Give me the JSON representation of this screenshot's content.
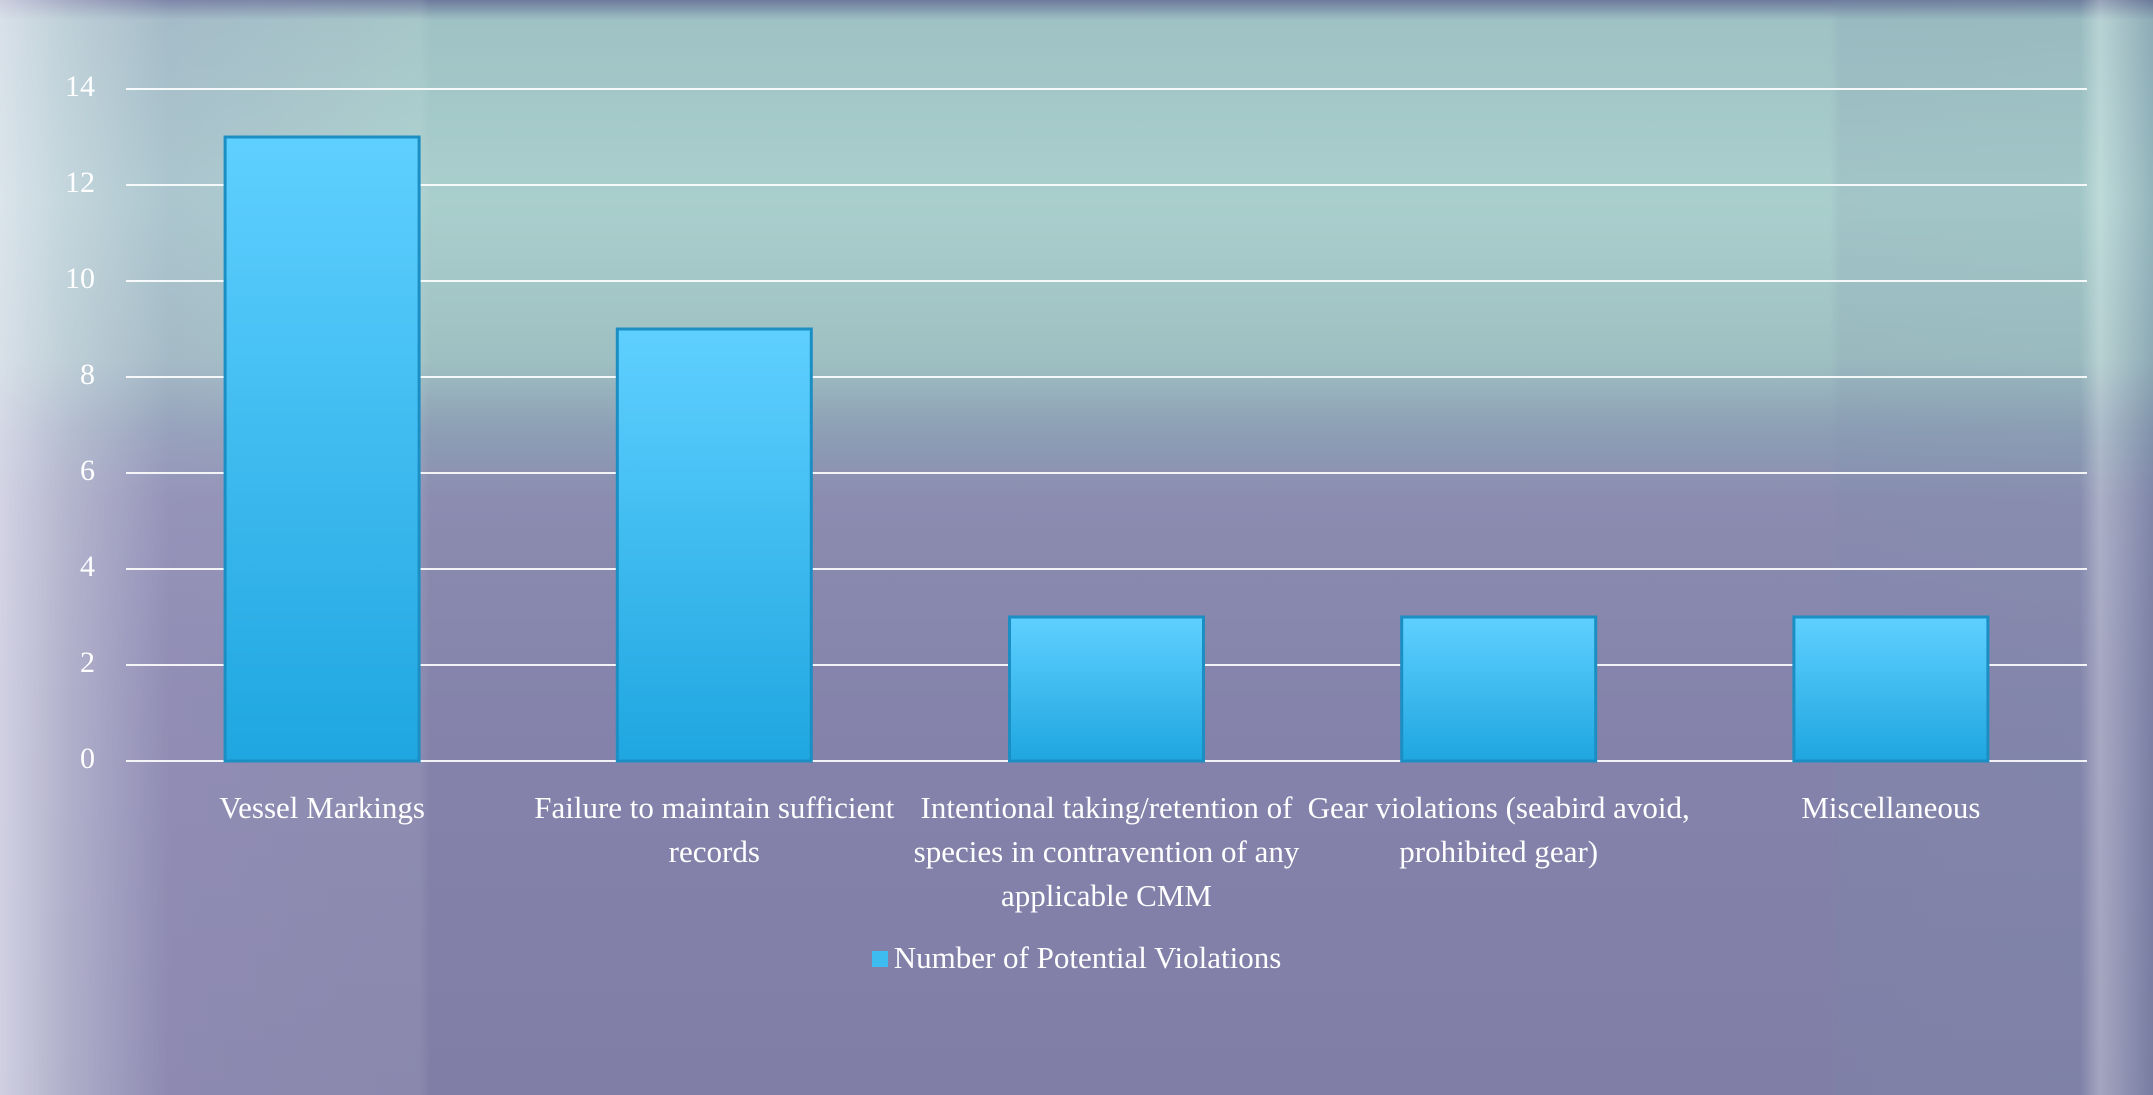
{
  "chart_data": {
    "type": "bar",
    "categories": [
      "Vessel Markings",
      "Failure to maintain sufficient records",
      "Intentional taking/retention of species in contravention of any applicable CMM",
      "Gear violations (seabird avoid, prohibited gear)",
      "Miscellaneous"
    ],
    "series": [
      {
        "name": "Number of Potential Violations",
        "color": "#3cbcef",
        "values": [
          13,
          9,
          3,
          3,
          3
        ]
      }
    ],
    "ylim": [
      0,
      14
    ],
    "yticks": [
      0,
      2,
      4,
      6,
      8,
      10,
      12,
      14
    ],
    "grid": true,
    "legend": "bottom"
  }
}
